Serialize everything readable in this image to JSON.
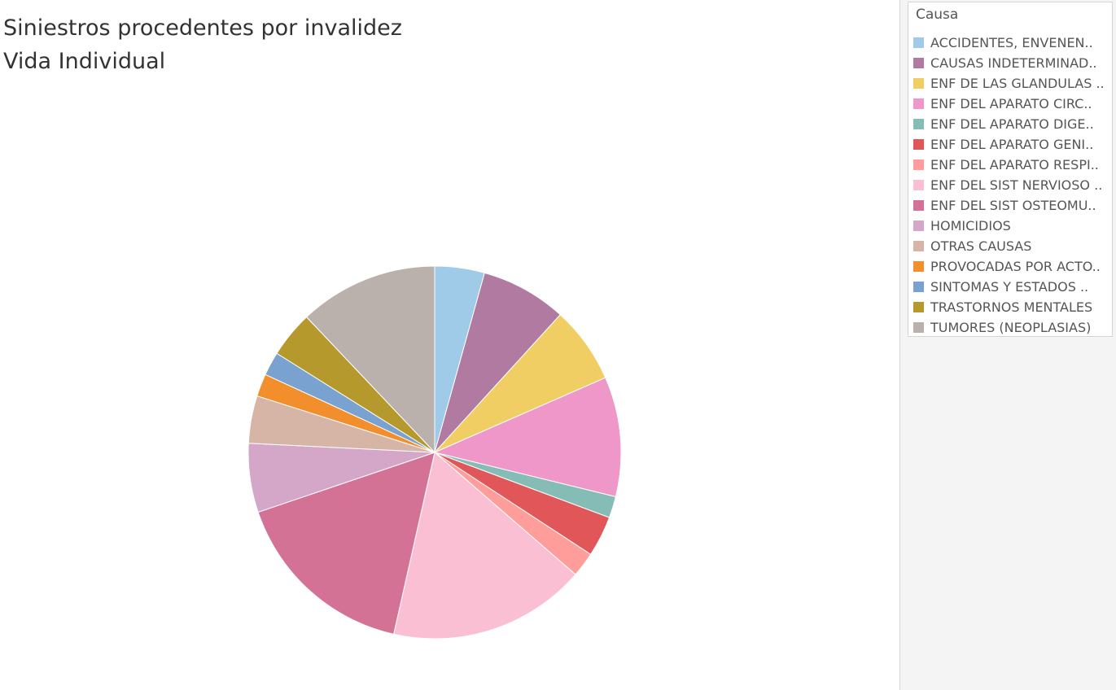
{
  "title": {
    "line1": "Siniestros procedentes por invalidez",
    "line2": "Vida Individual"
  },
  "legend": {
    "title": "Causa"
  },
  "chart_data": {
    "type": "pie",
    "title": "Siniestros procedentes por invalidez Vida Individual",
    "legend_position": "right",
    "start": "top, clockwise",
    "slices": [
      {
        "label": "ACCIDENTES, ENVENEN..",
        "value": 4.4,
        "color": "#a0cbe8"
      },
      {
        "label": "CAUSAS INDETERMINAD..",
        "value": 7.6,
        "color": "#b07aa1"
      },
      {
        "label": "ENF DE LAS GLANDULAS ..",
        "value": 6.8,
        "color": "#f1ce63"
      },
      {
        "label": "ENF DEL APARATO CIRC..",
        "value": 10.6,
        "color": "#ef97c8"
      },
      {
        "label": "ENF DEL APARATO DIGE..",
        "value": 1.9,
        "color": "#86bcb6"
      },
      {
        "label": "ENF DEL APARATO GENI..",
        "value": 3.6,
        "color": "#e15759"
      },
      {
        "label": "ENF DEL APARATO RESPI..",
        "value": 2.2,
        "color": "#ff9d9a"
      },
      {
        "label": "ENF DEL SIST NERVIOSO ..",
        "value": 17.5,
        "color": "#fabfd2"
      },
      {
        "label": "ENF DEL SIST OSTEOMU..",
        "value": 16.6,
        "color": "#d37295"
      },
      {
        "label": "HOMICIDIOS",
        "value": 6.1,
        "color": "#d4a6c8"
      },
      {
        "label": "OTRAS CAUSAS",
        "value": 4.2,
        "color": "#d7b5a6"
      },
      {
        "label": "PROVOCADAS POR ACTO..",
        "value": 2.0,
        "color": "#f28e2b"
      },
      {
        "label": "SINTOMAS Y ESTADOS ..",
        "value": 2.1,
        "color": "#79a2d1"
      },
      {
        "label": "TRASTORNOS MENTALES",
        "value": 4.1,
        "color": "#b6992d"
      },
      {
        "label": "TUMORES (NEOPLASIAS)",
        "value": 12.3,
        "color": "#bab0ac"
      }
    ]
  }
}
